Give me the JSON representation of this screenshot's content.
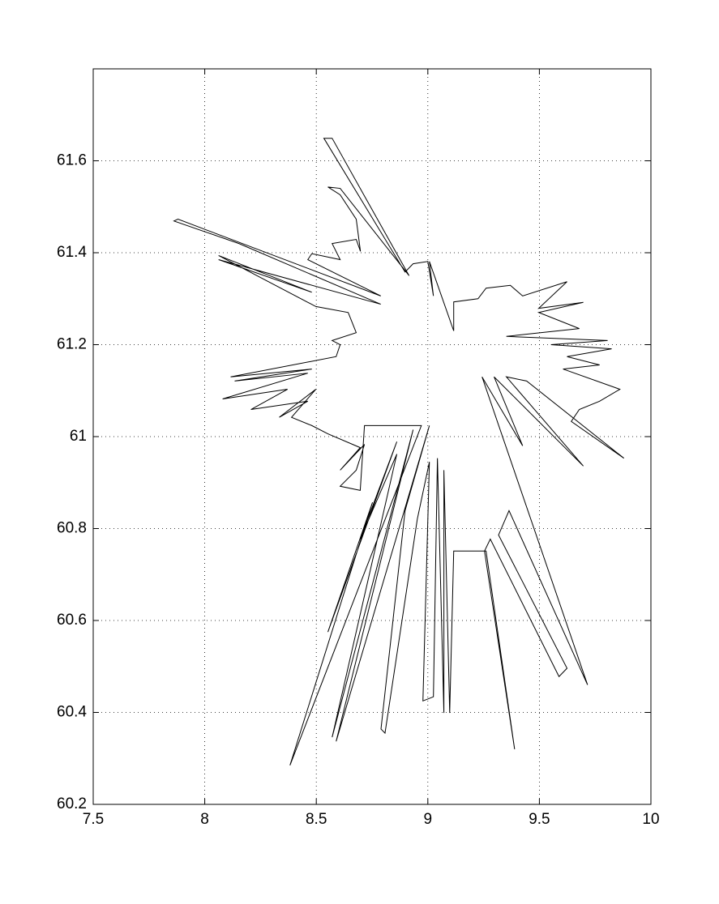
{
  "chart_data": {
    "type": "line",
    "color": "#000000",
    "grid": true,
    "xlim": [
      7.5,
      10
    ],
    "xticks": [
      7.5,
      8,
      8.5,
      9,
      9.5,
      10
    ],
    "ylim": [
      60.2,
      61.8
    ],
    "yticks": [
      60.2,
      60.4,
      60.6,
      60.8,
      61,
      61.2,
      61.4,
      61.6
    ],
    "x": [
      9.116,
      9.116,
      9.225,
      9.261,
      9.37,
      9.425,
      9.624,
      9.497,
      9.697,
      9.497,
      9.679,
      9.352,
      9.806,
      9.552,
      9.824,
      9.624,
      9.77,
      9.606,
      9.861,
      9.77,
      9.679,
      9.643,
      9.879,
      9.443,
      9.352,
      9.697,
      9.297,
      9.425,
      9.243,
      9.716,
      9.364,
      9.317,
      9.624,
      9.588,
      9.28,
      9.254,
      9.389,
      9.261,
      9.116,
      9.098,
      9.072,
      9.072,
      9.043,
      9.025,
      8.978,
      9.007,
      8.953,
      8.808,
      8.79,
      8.898,
      9.007,
      8.589,
      8.934,
      8.571,
      8.861,
      8.697,
      8.861,
      8.552,
      8.752,
      8.382,
      8.971,
      8.716,
      8.697,
      8.607,
      8.679,
      8.716,
      8.607,
      8.697,
      8.552,
      8.48,
      8.389,
      8.498,
      8.334,
      8.462,
      8.207,
      8.371,
      8.08,
      8.462,
      8.134,
      8.48,
      8.116,
      8.589,
      8.607,
      8.571,
      8.679,
      8.643,
      8.498,
      8.062,
      8.48,
      8.062,
      8.789,
      8.153,
      7.862,
      7.88,
      8.789,
      8.462,
      8.48,
      8.607,
      8.571,
      8.679,
      8.698,
      8.679,
      8.607,
      8.552,
      8.607,
      8.916,
      8.571,
      8.534,
      8.898,
      8.934,
      9.0,
      9.025,
      9.007,
      9.116
    ],
    "y": [
      61.23,
      61.293,
      61.3,
      61.323,
      61.329,
      61.306,
      61.337,
      61.279,
      61.292,
      61.27,
      61.235,
      61.218,
      61.209,
      61.2,
      61.191,
      61.174,
      61.156,
      61.147,
      61.103,
      61.077,
      61.059,
      61.033,
      60.953,
      61.121,
      61.13,
      60.936,
      61.13,
      60.98,
      61.13,
      60.46,
      60.839,
      60.786,
      60.496,
      60.478,
      60.777,
      60.751,
      60.32,
      60.751,
      60.751,
      60.399,
      60.927,
      60.399,
      60.953,
      60.434,
      60.425,
      60.945,
      60.821,
      60.355,
      60.364,
      60.839,
      61.024,
      60.337,
      61.015,
      60.346,
      60.962,
      60.777,
      60.989,
      60.575,
      60.857,
      60.285,
      61.024,
      61.024,
      60.883,
      60.892,
      60.927,
      60.983,
      60.927,
      60.976,
      61.006,
      61.024,
      61.042,
      61.103,
      61.042,
      61.077,
      61.059,
      61.103,
      61.082,
      61.138,
      61.121,
      61.147,
      61.13,
      61.174,
      61.2,
      61.209,
      61.226,
      61.27,
      61.283,
      61.394,
      61.314,
      61.385,
      61.288,
      61.42,
      61.469,
      61.473,
      61.306,
      61.385,
      61.398,
      61.385,
      61.42,
      61.429,
      61.403,
      61.473,
      61.526,
      61.543,
      61.54,
      61.35,
      61.649,
      61.649,
      61.358,
      61.376,
      61.381,
      61.306,
      61.381,
      61.23
    ]
  }
}
